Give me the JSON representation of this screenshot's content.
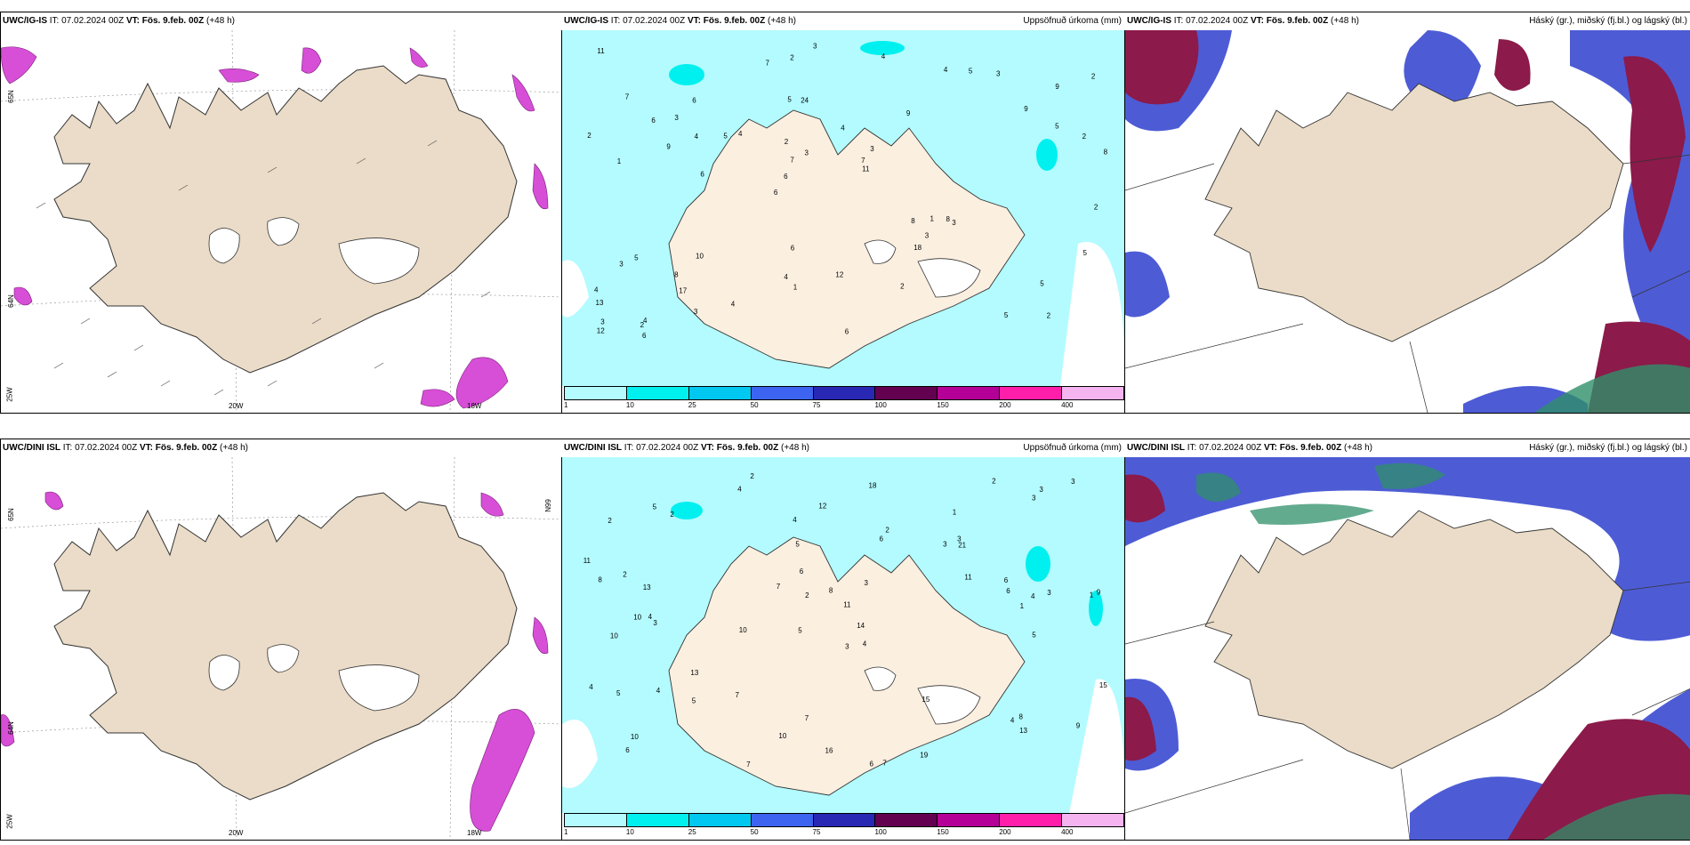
{
  "panels": [
    {
      "id": "top-left",
      "model": "UWC/IG-IS",
      "it_label": "IT:",
      "it_value": "07.02.2024 00Z",
      "vt_label": "VT:",
      "vt_value": "Fös. 9.feb. 00Z",
      "lead": "(+48 h)",
      "right_title": "",
      "coords": [
        "65N",
        "64N",
        "25W",
        "20W",
        "18W"
      ]
    },
    {
      "id": "top-middle",
      "model": "UWC/IG-IS",
      "it_label": "IT:",
      "it_value": "07.02.2024 00Z",
      "vt_label": "VT:",
      "vt_value": "Fös. 9.feb. 00Z",
      "lead": "(+48 h)",
      "right_title": "Uppsöfnuð úrkoma (mm)",
      "coords": []
    },
    {
      "id": "top-right",
      "model": "UWC/IG-IS",
      "it_label": "IT:",
      "it_value": "07.02.2024 00Z",
      "vt_label": "VT:",
      "vt_value": "Fös. 9.feb. 00Z",
      "lead": "(+48 h)",
      "right_title": "Háský (gr.), miðský (fj.bl.) og lágský (bl.)",
      "coords": []
    },
    {
      "id": "bottom-left",
      "model": "UWC/DINI ISL",
      "it_label": "IT:",
      "it_value": "07.02.2024 00Z",
      "vt_label": "VT:",
      "vt_value": "Fös. 9.feb. 00Z",
      "lead": "(+48 h)",
      "right_title": "",
      "coords": [
        "66N",
        "65N",
        "64N",
        "25W",
        "20W",
        "18W"
      ]
    },
    {
      "id": "bottom-middle",
      "model": "UWC/DINI ISL",
      "it_label": "IT:",
      "it_value": "07.02.2024 00Z",
      "vt_label": "VT:",
      "vt_value": "Fös. 9.feb. 00Z",
      "lead": "(+48 h)",
      "right_title": "Uppsöfnuð úrkoma (mm)",
      "coords": []
    },
    {
      "id": "bottom-right",
      "model": "UWC/DINI ISL",
      "it_label": "IT:",
      "it_value": "07.02.2024 00Z",
      "vt_label": "VT:",
      "vt_value": "Fös. 9.feb. 00Z",
      "lead": "(+48 h)",
      "right_title": "Háský (gr.), miðský (fj.bl.) og lágský (bl.)",
      "coords": []
    }
  ],
  "precip_legend": {
    "labels": [
      "1",
      "10",
      "25",
      "50",
      "75",
      "100",
      "150",
      "200",
      "400"
    ],
    "colors": [
      "#b3fbff",
      "#00f0f0",
      "#00c8f0",
      "#3c64f0",
      "#2828b4",
      "#640050",
      "#b40096",
      "#ff1eaa",
      "#f5b4f0"
    ]
  },
  "precip_values_top": [
    "2",
    "1",
    "9",
    "6",
    "9",
    "4",
    "5",
    "4",
    "5",
    "4",
    "13",
    "17",
    "24",
    "3",
    "3",
    "7",
    "2",
    "8",
    "8",
    "5",
    "6",
    "4",
    "7",
    "6",
    "4",
    "10",
    "5",
    "5",
    "8",
    "6",
    "5",
    "9",
    "18",
    "3",
    "2",
    "7",
    "3",
    "1",
    "11",
    "3",
    "9",
    "2",
    "3",
    "2",
    "8",
    "6",
    "12",
    "12",
    "3",
    "3",
    "6",
    "2",
    "3",
    "5",
    "2",
    "4",
    "7",
    "3",
    "5",
    "6",
    "4",
    "1",
    "4",
    "4",
    "11",
    "6",
    "2",
    "2"
  ],
  "precip_values_bottom": [
    "2",
    "1",
    "1",
    "5",
    "4",
    "4",
    "2",
    "3",
    "10",
    "6",
    "11",
    "6",
    "4",
    "10",
    "6",
    "7",
    "7",
    "2",
    "11",
    "13",
    "13",
    "10",
    "9",
    "3",
    "4",
    "2",
    "2",
    "6",
    "8",
    "5",
    "4",
    "2",
    "4",
    "7",
    "15",
    "15",
    "6",
    "10",
    "3",
    "12",
    "10",
    "7",
    "19",
    "5",
    "16",
    "21",
    "13",
    "3",
    "11",
    "14",
    "4",
    "1",
    "3",
    "3",
    "18",
    "5",
    "6",
    "8",
    "3",
    "5",
    "9",
    "5",
    "2",
    "7",
    "3",
    "8",
    "4",
    "3"
  ],
  "colors": {
    "land": "#eadcc8",
    "precip_land": "#fbefe0",
    "precip_light": "#b3fbff",
    "precip_mid": "#00f0f0",
    "wind_pink": "#d64fd6",
    "cloud_high": "#2f8f6a",
    "cloud_mid": "#8c1a4a",
    "cloud_low": "#3a4ad0"
  }
}
